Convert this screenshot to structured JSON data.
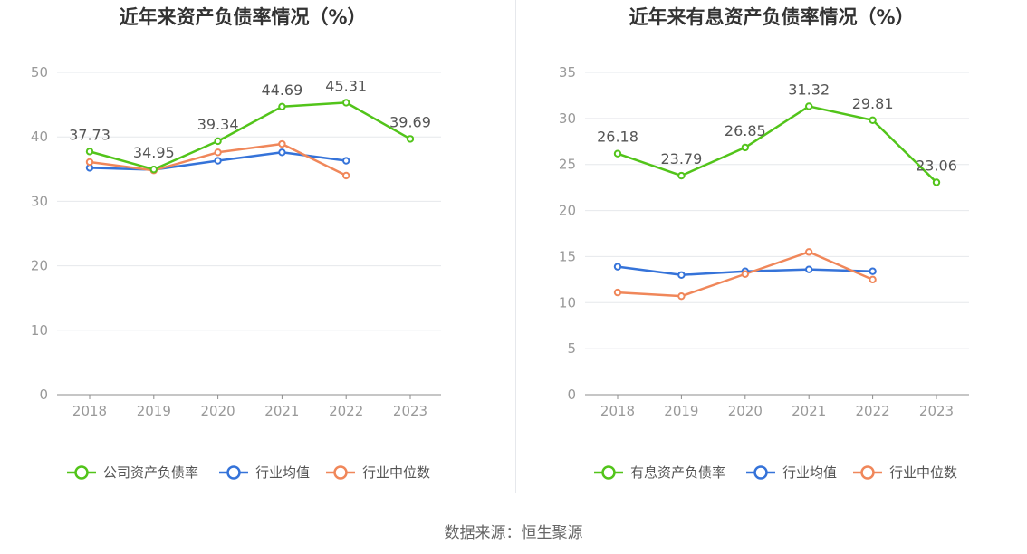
{
  "charts": [
    {
      "title": "近年来资产负债率情况（%）",
      "legend": [
        "公司资产负债率",
        "行业均值",
        "行业中位数"
      ]
    },
    {
      "title": "近年来有息资产负债率情况（%）",
      "legend": [
        "有息资产负债率",
        "行业均值",
        "行业中位数"
      ]
    }
  ],
  "source": "数据来源：恒生聚源",
  "colors": {
    "company": "#52c41a",
    "avg": "#3573d9",
    "median": "#f0875a",
    "axis": "#999999",
    "grid": "#e6e8ec",
    "label": "#555555"
  },
  "chart_data": [
    {
      "type": "line",
      "title": "近年来资产负债率情况（%）",
      "categories": [
        "2018",
        "2019",
        "2020",
        "2021",
        "2022",
        "2023"
      ],
      "ylim": [
        0,
        50
      ],
      "yticks": [
        "0",
        "10",
        "20",
        "30",
        "40",
        "50"
      ],
      "grid": true,
      "legend_position": "bottom",
      "series": [
        {
          "name": "公司资产负债率",
          "values": [
            37.73,
            34.95,
            39.34,
            44.69,
            45.31,
            39.69
          ],
          "labels": [
            "37.73",
            "34.95",
            "39.34",
            "44.69",
            "45.31",
            "39.69"
          ]
        },
        {
          "name": "行业均值",
          "values": [
            35.2,
            34.9,
            36.3,
            37.6,
            36.3,
            null
          ]
        },
        {
          "name": "行业中位数",
          "values": [
            36.1,
            34.8,
            37.6,
            38.9,
            34.0,
            null
          ]
        }
      ]
    },
    {
      "type": "line",
      "title": "近年来有息资产负债率情况（%）",
      "categories": [
        "2018",
        "2019",
        "2020",
        "2021",
        "2022",
        "2023"
      ],
      "ylim": [
        0,
        35
      ],
      "yticks": [
        "0",
        "5",
        "10",
        "15",
        "20",
        "25",
        "30",
        "35"
      ],
      "grid": true,
      "legend_position": "bottom",
      "series": [
        {
          "name": "有息资产负债率",
          "values": [
            26.18,
            23.79,
            26.85,
            31.32,
            29.81,
            23.06
          ],
          "labels": [
            "26.18",
            "23.79",
            "26.85",
            "31.32",
            "29.81",
            "23.06"
          ]
        },
        {
          "name": "行业均值",
          "values": [
            13.9,
            13.0,
            13.4,
            13.6,
            13.4,
            null
          ]
        },
        {
          "name": "行业中位数",
          "values": [
            11.1,
            10.7,
            13.1,
            15.5,
            12.5,
            null
          ]
        }
      ]
    }
  ]
}
